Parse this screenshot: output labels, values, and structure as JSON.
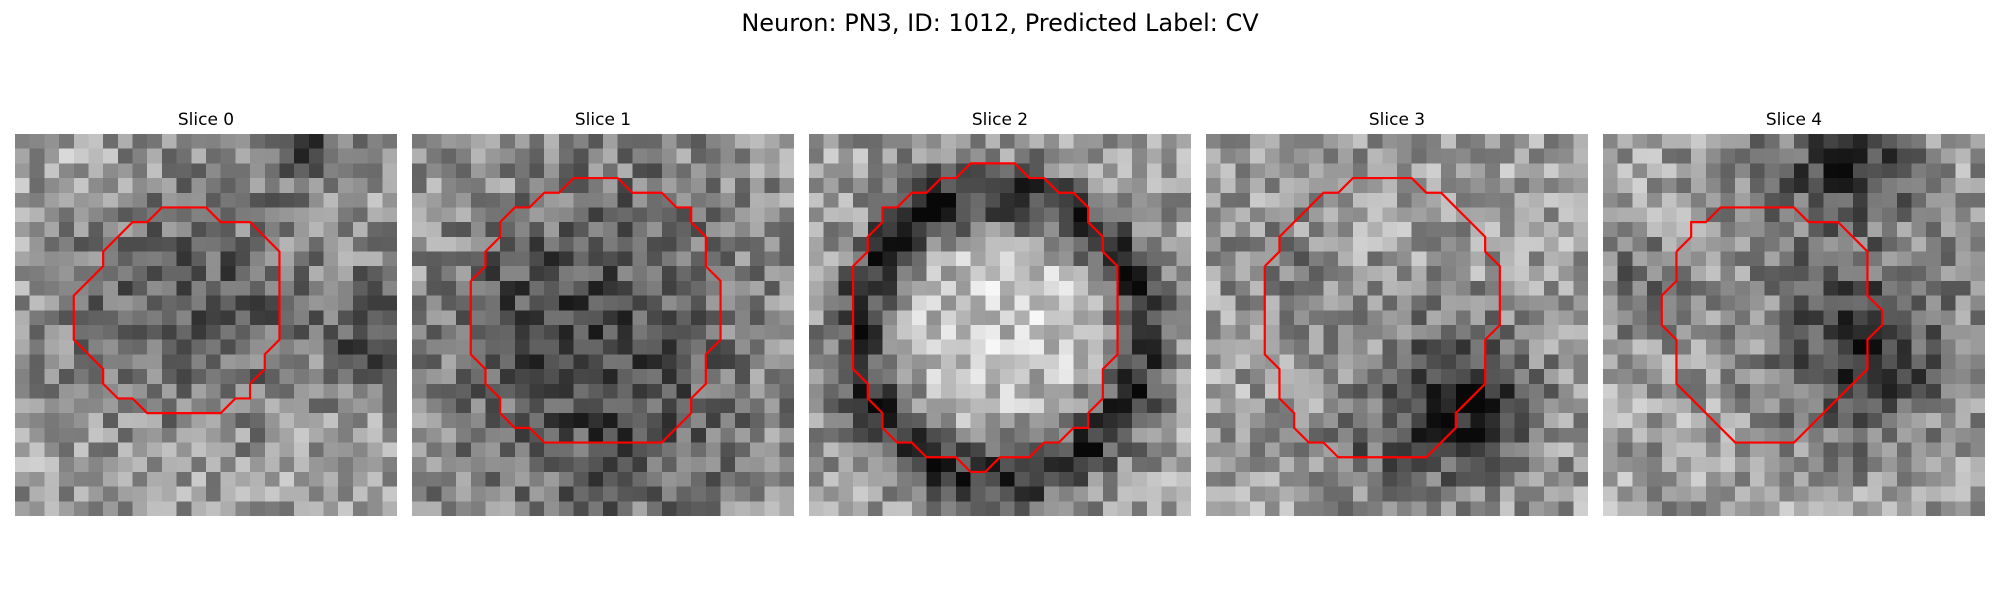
{
  "figure": {
    "title": "Neuron: PN3, ID: 1012, Predicted Label: CV"
  },
  "panels": [
    {
      "title": "Slice 0",
      "seed": 11,
      "mean": 0.62,
      "dark": [
        [
          0.45,
          0.45,
          0.22,
          0.3
        ],
        [
          0.95,
          0.5,
          0.1,
          0.35
        ],
        [
          0.75,
          0.02,
          0.08,
          0.35
        ],
        [
          0.15,
          0.1,
          0.06,
          -0.1
        ]
      ]
    },
    {
      "title": "Slice 1",
      "seed": 23,
      "mean": 0.58,
      "dark": [
        [
          0.5,
          0.68,
          0.25,
          0.3
        ],
        [
          0.3,
          0.4,
          0.12,
          0.15
        ],
        [
          0.55,
          0.2,
          0.18,
          0.1
        ]
      ]
    },
    {
      "title": "Slice 2",
      "seed": 37,
      "mean": 0.6,
      "ring": [
        0.5,
        0.53,
        0.37,
        0.06,
        0.45
      ],
      "dark": [
        [
          0.5,
          0.5,
          0.25,
          -0.18
        ],
        [
          0.3,
          0.18,
          0.06,
          0.25
        ]
      ]
    },
    {
      "title": "Slice 3",
      "seed": 53,
      "mean": 0.62,
      "dark": [
        [
          0.66,
          0.7,
          0.14,
          0.5
        ],
        [
          0.2,
          0.35,
          0.1,
          0.12
        ],
        [
          0.4,
          0.85,
          0.1,
          0.15
        ]
      ]
    },
    {
      "title": "Slice 4",
      "seed": 71,
      "mean": 0.62,
      "dark": [
        [
          0.68,
          0.56,
          0.16,
          0.45
        ],
        [
          0.65,
          0.05,
          0.12,
          0.45
        ],
        [
          0.1,
          0.4,
          0.08,
          0.2
        ],
        [
          0.4,
          0.2,
          0.12,
          0.1
        ]
      ]
    }
  ],
  "contour": {
    "color": "#ff0000",
    "paths": [
      [
        [
          5.0,
          10.0
        ],
        [
          6.0,
          9.0
        ],
        [
          6.0,
          8.0
        ],
        [
          7.0,
          7.0
        ],
        [
          8.0,
          6.0
        ],
        [
          9.0,
          6.0
        ],
        [
          10.0,
          5.0
        ],
        [
          11.0,
          5.0
        ],
        [
          12.0,
          5.0
        ],
        [
          13.0,
          5.0
        ],
        [
          14.0,
          6.0
        ],
        [
          15.0,
          6.0
        ],
        [
          16.0,
          6.0
        ],
        [
          17.0,
          7.0
        ],
        [
          18.0,
          8.0
        ],
        [
          18.0,
          9.0
        ],
        [
          18.0,
          10.0
        ],
        [
          18.0,
          11.0
        ],
        [
          18.0,
          12.0
        ],
        [
          18.0,
          13.0
        ],
        [
          18.0,
          14.0
        ],
        [
          17.0,
          15.0
        ],
        [
          17.0,
          16.0
        ],
        [
          16.0,
          17.0
        ],
        [
          16.0,
          18.0
        ],
        [
          15.0,
          18.0
        ],
        [
          14.0,
          19.0
        ],
        [
          13.0,
          19.0
        ],
        [
          12.0,
          19.0
        ],
        [
          11.0,
          19.0
        ],
        [
          10.0,
          19.0
        ],
        [
          9.0,
          19.0
        ],
        [
          8.0,
          18.0
        ],
        [
          7.0,
          18.0
        ],
        [
          6.0,
          17.0
        ],
        [
          6.0,
          16.0
        ],
        [
          5.0,
          15.0
        ],
        [
          4.0,
          14.0
        ],
        [
          4.0,
          13.0
        ],
        [
          4.0,
          12.0
        ],
        [
          4.0,
          11.0
        ],
        [
          5.0,
          10.0
        ]
      ],
      [
        [
          4.0,
          10.0
        ],
        [
          5.0,
          9.0
        ],
        [
          5.0,
          8.0
        ],
        [
          6.0,
          7.0
        ],
        [
          6.0,
          6.0
        ],
        [
          7.0,
          5.0
        ],
        [
          8.0,
          5.0
        ],
        [
          9.0,
          4.0
        ],
        [
          10.0,
          4.0
        ],
        [
          11.0,
          3.0
        ],
        [
          12.0,
          3.0
        ],
        [
          13.0,
          3.0
        ],
        [
          14.0,
          3.0
        ],
        [
          15.0,
          4.0
        ],
        [
          16.0,
          4.0
        ],
        [
          17.0,
          4.0
        ],
        [
          18.0,
          5.0
        ],
        [
          19.0,
          5.0
        ],
        [
          19.0,
          6.0
        ],
        [
          20.0,
          7.0
        ],
        [
          20.0,
          8.0
        ],
        [
          20.0,
          9.0
        ],
        [
          21.0,
          10.0
        ],
        [
          21.0,
          11.0
        ],
        [
          21.0,
          12.0
        ],
        [
          21.0,
          13.0
        ],
        [
          21.0,
          14.0
        ],
        [
          20.0,
          15.0
        ],
        [
          20.0,
          16.0
        ],
        [
          20.0,
          17.0
        ],
        [
          19.0,
          18.0
        ],
        [
          19.0,
          19.0
        ],
        [
          18.0,
          20.0
        ],
        [
          17.0,
          21.0
        ],
        [
          16.0,
          21.0
        ],
        [
          15.0,
          21.0
        ],
        [
          14.0,
          21.0
        ],
        [
          13.0,
          21.0
        ],
        [
          12.0,
          21.0
        ],
        [
          11.0,
          21.0
        ],
        [
          10.0,
          21.0
        ],
        [
          9.0,
          21.0
        ],
        [
          8.0,
          20.0
        ],
        [
          7.0,
          20.0
        ],
        [
          6.0,
          19.0
        ],
        [
          6.0,
          18.0
        ],
        [
          5.0,
          17.0
        ],
        [
          5.0,
          16.0
        ],
        [
          4.0,
          15.0
        ],
        [
          4.0,
          14.0
        ],
        [
          4.0,
          13.0
        ],
        [
          4.0,
          12.0
        ],
        [
          4.0,
          11.0
        ],
        [
          4.0,
          10.0
        ]
      ],
      [
        [
          3.0,
          10.0
        ],
        [
          3.0,
          9.0
        ],
        [
          4.0,
          8.0
        ],
        [
          4.0,
          7.0
        ],
        [
          5.0,
          6.0
        ],
        [
          5.0,
          5.0
        ],
        [
          6.0,
          5.0
        ],
        [
          7.0,
          4.0
        ],
        [
          8.0,
          4.0
        ],
        [
          9.0,
          3.0
        ],
        [
          10.0,
          3.0
        ],
        [
          11.0,
          2.0
        ],
        [
          12.0,
          2.0
        ],
        [
          13.0,
          2.0
        ],
        [
          14.0,
          2.0
        ],
        [
          15.0,
          3.0
        ],
        [
          16.0,
          3.0
        ],
        [
          17.0,
          4.0
        ],
        [
          18.0,
          4.0
        ],
        [
          19.0,
          5.0
        ],
        [
          19.0,
          6.0
        ],
        [
          20.0,
          7.0
        ],
        [
          20.0,
          8.0
        ],
        [
          21.0,
          9.0
        ],
        [
          21.0,
          10.0
        ],
        [
          21.0,
          11.0
        ],
        [
          21.0,
          12.0
        ],
        [
          21.0,
          13.0
        ],
        [
          21.0,
          14.0
        ],
        [
          21.0,
          15.0
        ],
        [
          20.0,
          16.0
        ],
        [
          20.0,
          17.0
        ],
        [
          20.0,
          18.0
        ],
        [
          19.0,
          19.0
        ],
        [
          19.0,
          20.0
        ],
        [
          18.0,
          20.0
        ],
        [
          17.0,
          21.0
        ],
        [
          16.0,
          21.0
        ],
        [
          15.0,
          22.0
        ],
        [
          14.0,
          22.0
        ],
        [
          13.0,
          22.0
        ],
        [
          12.0,
          23.0
        ],
        [
          11.0,
          23.0
        ],
        [
          10.0,
          22.0
        ],
        [
          9.0,
          22.0
        ],
        [
          8.0,
          22.0
        ],
        [
          7.0,
          21.0
        ],
        [
          6.0,
          21.0
        ],
        [
          5.0,
          20.0
        ],
        [
          5.0,
          19.0
        ],
        [
          4.0,
          18.0
        ],
        [
          4.0,
          17.0
        ],
        [
          3.0,
          16.0
        ],
        [
          3.0,
          15.0
        ],
        [
          3.0,
          14.0
        ],
        [
          3.0,
          13.0
        ],
        [
          3.0,
          12.0
        ],
        [
          3.0,
          11.0
        ],
        [
          3.0,
          10.0
        ]
      ],
      [
        [
          4.0,
          9.0
        ],
        [
          5.0,
          8.0
        ],
        [
          5.0,
          7.0
        ],
        [
          6.0,
          6.0
        ],
        [
          7.0,
          5.0
        ],
        [
          8.0,
          4.0
        ],
        [
          9.0,
          4.0
        ],
        [
          10.0,
          3.0
        ],
        [
          11.0,
          3.0
        ],
        [
          12.0,
          3.0
        ],
        [
          13.0,
          3.0
        ],
        [
          14.0,
          3.0
        ],
        [
          15.0,
          4.0
        ],
        [
          16.0,
          4.0
        ],
        [
          17.0,
          5.0
        ],
        [
          18.0,
          6.0
        ],
        [
          19.0,
          7.0
        ],
        [
          19.0,
          8.0
        ],
        [
          20.0,
          9.0
        ],
        [
          20.0,
          10.0
        ],
        [
          20.0,
          11.0
        ],
        [
          20.0,
          12.0
        ],
        [
          20.0,
          13.0
        ],
        [
          19.0,
          14.0
        ],
        [
          19.0,
          15.0
        ],
        [
          19.0,
          16.0
        ],
        [
          19.0,
          17.0
        ],
        [
          18.0,
          18.0
        ],
        [
          17.0,
          19.0
        ],
        [
          17.0,
          20.0
        ],
        [
          16.0,
          21.0
        ],
        [
          15.0,
          22.0
        ],
        [
          14.0,
          22.0
        ],
        [
          13.0,
          22.0
        ],
        [
          12.0,
          22.0
        ],
        [
          11.0,
          22.0
        ],
        [
          10.0,
          22.0
        ],
        [
          9.0,
          22.0
        ],
        [
          8.0,
          21.0
        ],
        [
          7.0,
          21.0
        ],
        [
          6.0,
          20.0
        ],
        [
          6.0,
          19.0
        ],
        [
          5.0,
          18.0
        ],
        [
          5.0,
          17.0
        ],
        [
          5.0,
          16.0
        ],
        [
          4.0,
          15.0
        ],
        [
          4.0,
          14.0
        ],
        [
          4.0,
          13.0
        ],
        [
          4.0,
          12.0
        ],
        [
          4.0,
          11.0
        ],
        [
          4.0,
          10.0
        ],
        [
          4.0,
          9.0
        ]
      ],
      [
        [
          5.0,
          8.0
        ],
        [
          6.0,
          7.0
        ],
        [
          6.0,
          6.0
        ],
        [
          7.0,
          6.0
        ],
        [
          8.0,
          5.0
        ],
        [
          9.0,
          5.0
        ],
        [
          10.0,
          5.0
        ],
        [
          11.0,
          5.0
        ],
        [
          12.0,
          5.0
        ],
        [
          13.0,
          5.0
        ],
        [
          14.0,
          6.0
        ],
        [
          15.0,
          6.0
        ],
        [
          16.0,
          6.0
        ],
        [
          17.0,
          7.0
        ],
        [
          18.0,
          8.0
        ],
        [
          18.0,
          9.0
        ],
        [
          18.0,
          10.0
        ],
        [
          18.0,
          11.0
        ],
        [
          19.0,
          12.0
        ],
        [
          19.0,
          13.0
        ],
        [
          18.0,
          14.0
        ],
        [
          18.0,
          15.0
        ],
        [
          18.0,
          16.0
        ],
        [
          17.0,
          17.0
        ],
        [
          16.0,
          18.0
        ],
        [
          15.0,
          19.0
        ],
        [
          14.0,
          20.0
        ],
        [
          13.0,
          21.0
        ],
        [
          12.0,
          21.0
        ],
        [
          11.0,
          21.0
        ],
        [
          10.0,
          21.0
        ],
        [
          9.0,
          21.0
        ],
        [
          8.0,
          20.0
        ],
        [
          7.0,
          19.0
        ],
        [
          6.0,
          18.0
        ],
        [
          5.0,
          17.0
        ],
        [
          5.0,
          16.0
        ],
        [
          5.0,
          15.0
        ],
        [
          5.0,
          14.0
        ],
        [
          4.0,
          13.0
        ],
        [
          4.0,
          12.0
        ],
        [
          4.0,
          11.0
        ],
        [
          5.0,
          10.0
        ],
        [
          5.0,
          9.0
        ],
        [
          5.0,
          8.0
        ]
      ]
    ]
  }
}
